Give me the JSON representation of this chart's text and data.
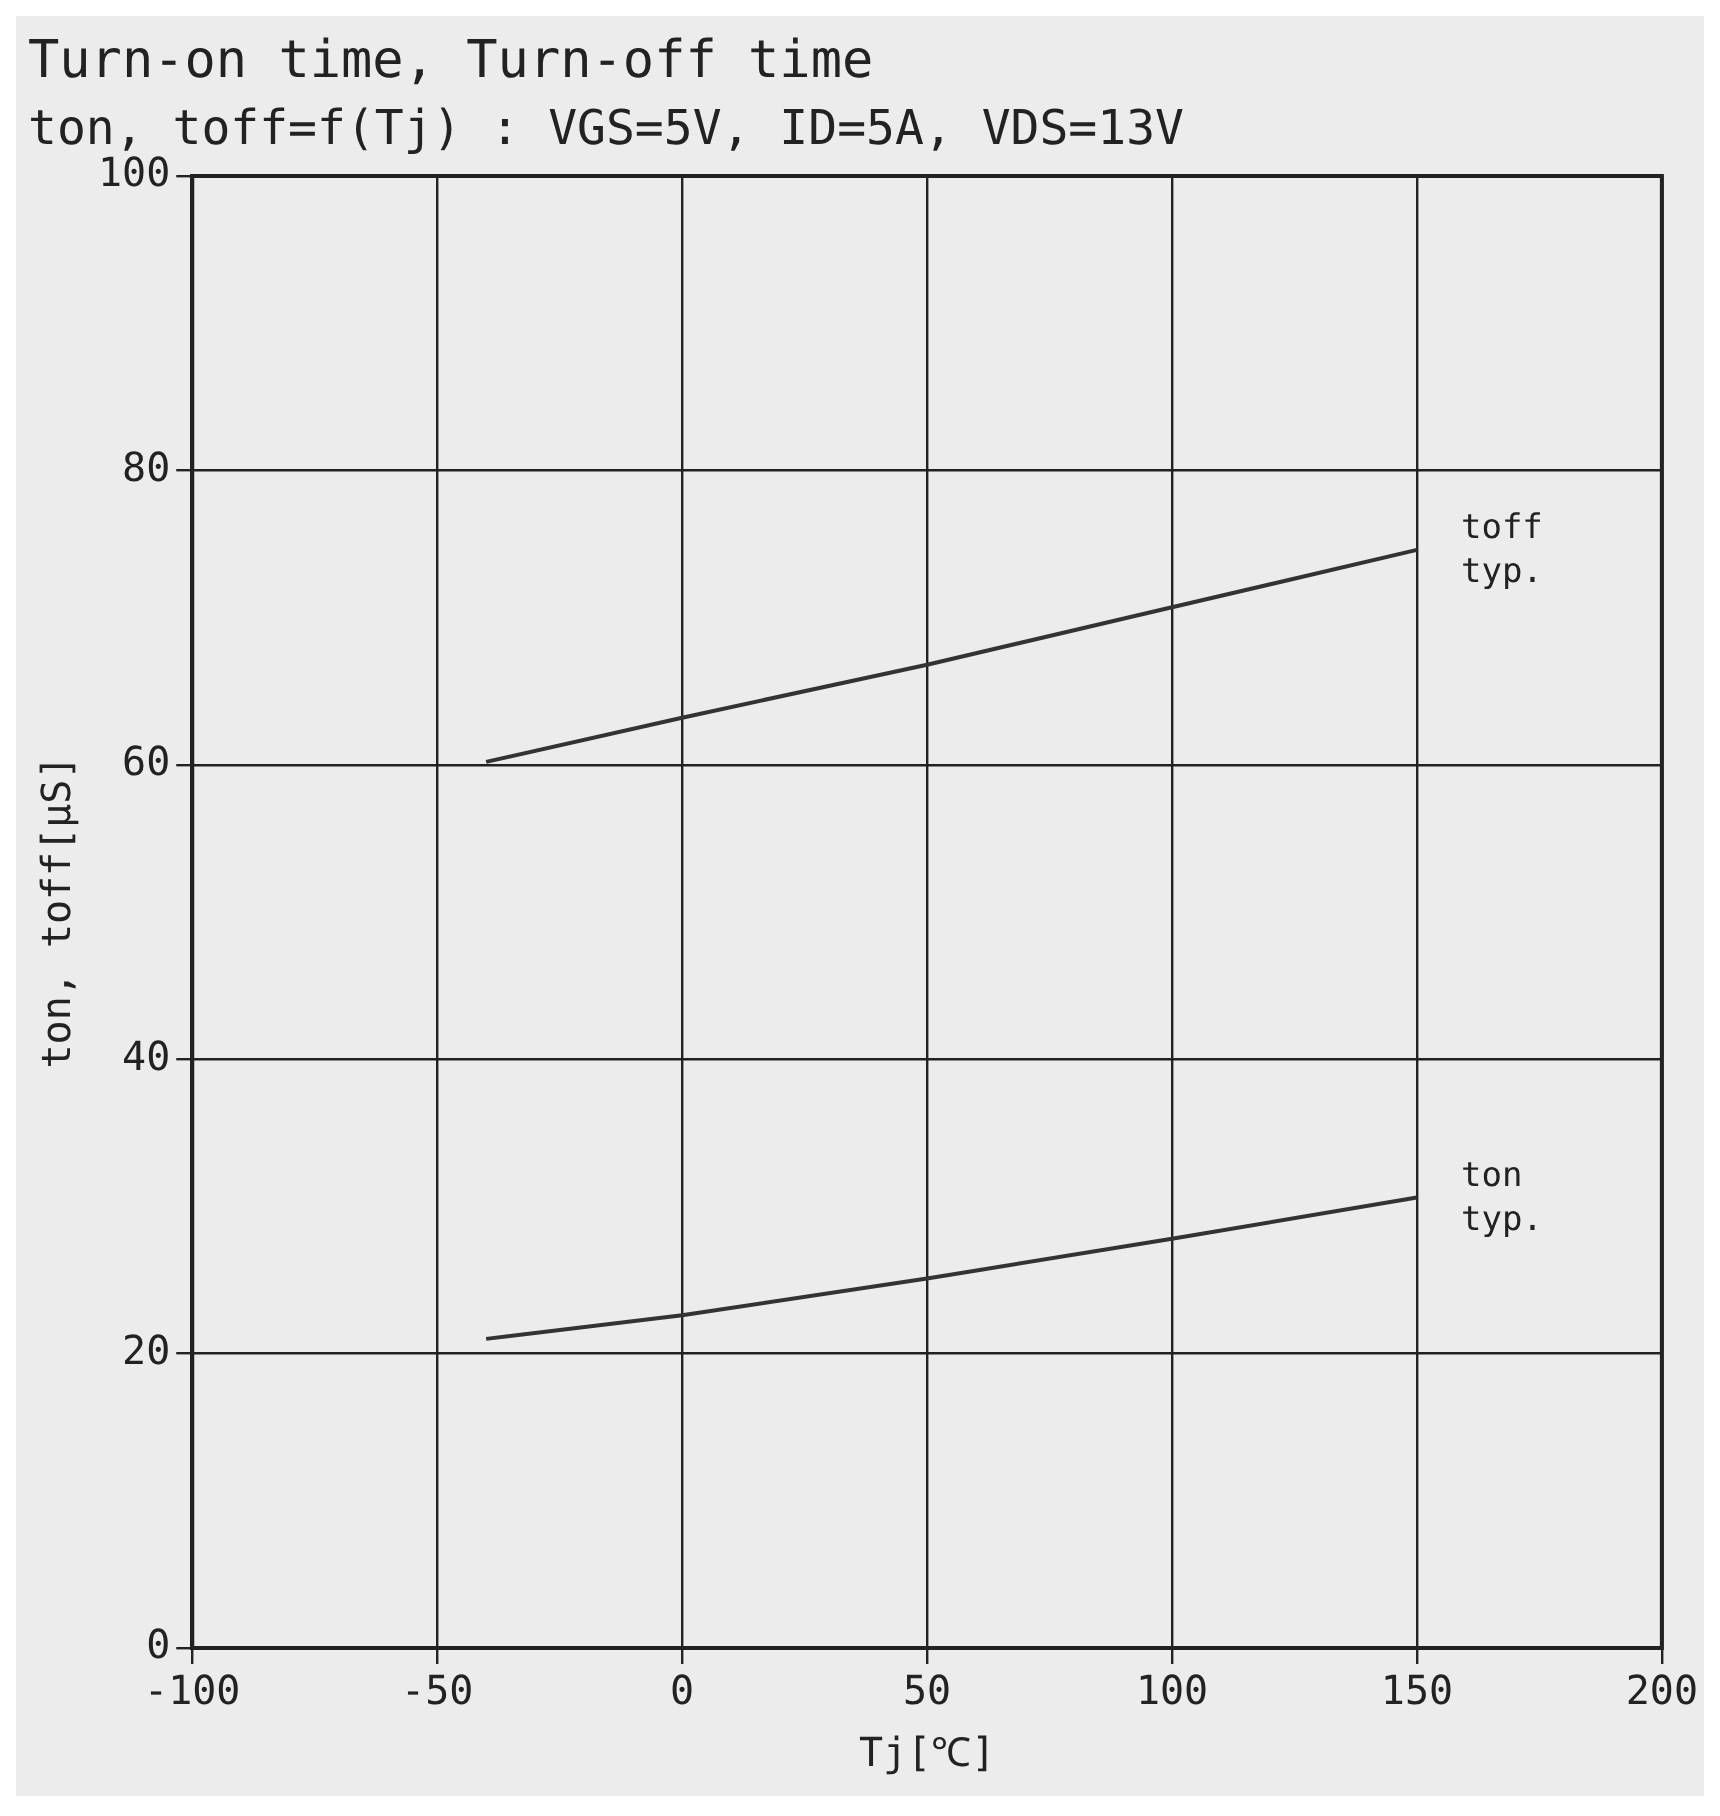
{
  "chart_data": {
    "type": "line",
    "title": "Turn-on time, Turn-off time",
    "subtitle": "ton, toff=f(Tj) : VGS=5V, ID=5A, VDS=13V",
    "xlabel": "Tj[℃]",
    "ylabel": "ton, toff[μS]",
    "series": [
      {
        "x": [
          -40,
          0,
          50,
          100,
          150
        ],
        "values": [
          60.2,
          63.2,
          66.8,
          70.7,
          74.6
        ],
        "color": "#333333"
      },
      {
        "x": [
          -40,
          0,
          50,
          100,
          150
        ],
        "values": [
          21,
          22.6,
          25.1,
          27.8,
          30.6
        ],
        "color": "#333333"
      }
    ],
    "annotations": [
      {
        "text": "toff typ.",
        "x": 150,
        "y": 74.6
      },
      {
        "text": "ton typ.",
        "x": 150,
        "y": 30.6
      }
    ],
    "xlim": [
      -100,
      200
    ],
    "xticks": [
      -100,
      -50,
      0,
      50,
      100,
      150,
      200
    ],
    "ylim": [
      0,
      100
    ],
    "yticks": [
      0,
      20,
      40,
      60,
      80,
      100
    ],
    "grid": true,
    "legend": false,
    "marker": "none",
    "line_style": "solid"
  }
}
